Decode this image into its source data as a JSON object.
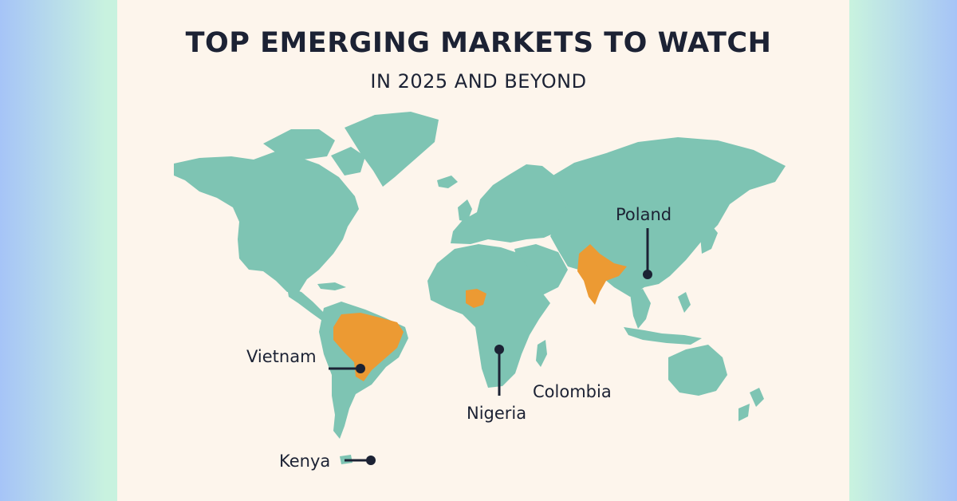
{
  "title": "TOP EMERGING MARKETS TO WATCH",
  "subtitle": "IN 2025 AND BEYOND",
  "colors": {
    "land": "#7ec4b3",
    "highlight": "#ec9a33",
    "background": "#fdf5ec",
    "ink": "#1c2234"
  },
  "callouts": [
    {
      "id": "poland",
      "label": "Poland"
    },
    {
      "id": "vietnam",
      "label": "Vietnam"
    },
    {
      "id": "nigeria",
      "label": "Nigeria"
    },
    {
      "id": "colombia",
      "label": "Colombia"
    },
    {
      "id": "kenya",
      "label": "Kenya"
    }
  ],
  "highlighted_regions": [
    "brazil",
    "nigeria",
    "india"
  ]
}
